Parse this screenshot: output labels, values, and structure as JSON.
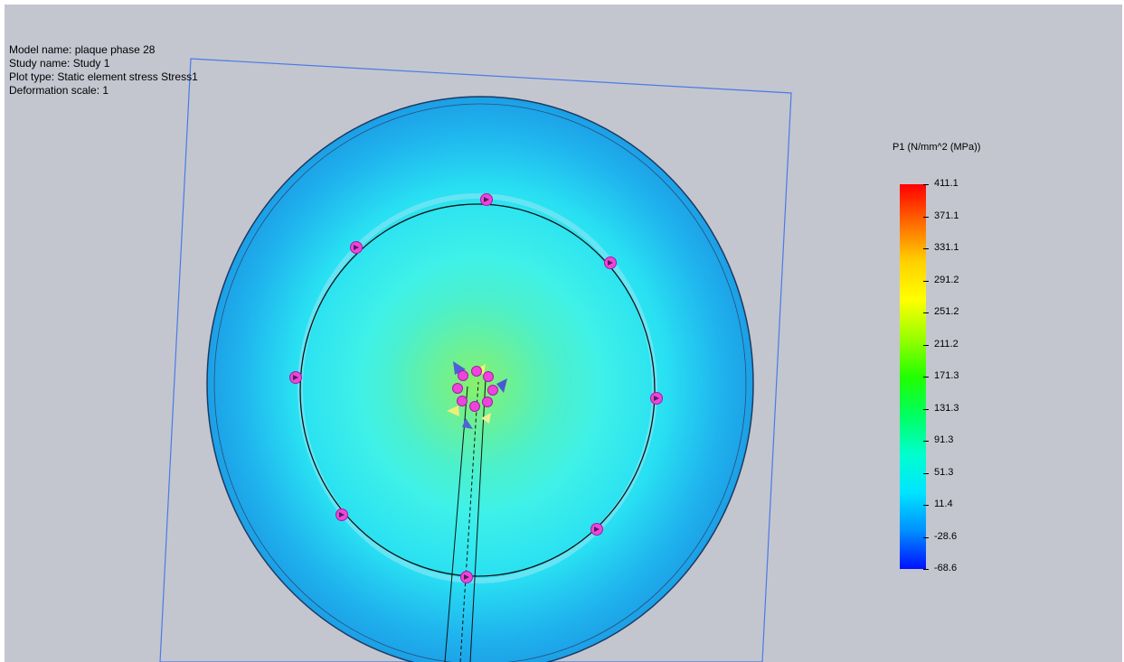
{
  "info": {
    "model_name": "Model name: plaque phase 28",
    "study_name": "Study name: Study 1",
    "plot_type": "Plot type: Static element stress Stress1",
    "deformation_scale": "Deformation scale: 1"
  },
  "legend": {
    "title": "P1 (N/mm^2 (MPa))",
    "ticks": [
      "411.1",
      "371.1",
      "331.1",
      "291.2",
      "251.2",
      "211.2",
      "171.3",
      "131.3",
      "91.3",
      "51.3",
      "11.4",
      "-28.6",
      "-68.6"
    ],
    "colors": [
      "#ff0000",
      "#ff6a00",
      "#ffd000",
      "#ffff00",
      "#9aff00",
      "#22ff00",
      "#00ff60",
      "#00ffcc",
      "#00e5ff",
      "#0090ff",
      "#0010ff"
    ]
  },
  "icons": {
    "fixture": "pink-fixture-marker-icon",
    "triad": "orientation-triad-icon"
  }
}
